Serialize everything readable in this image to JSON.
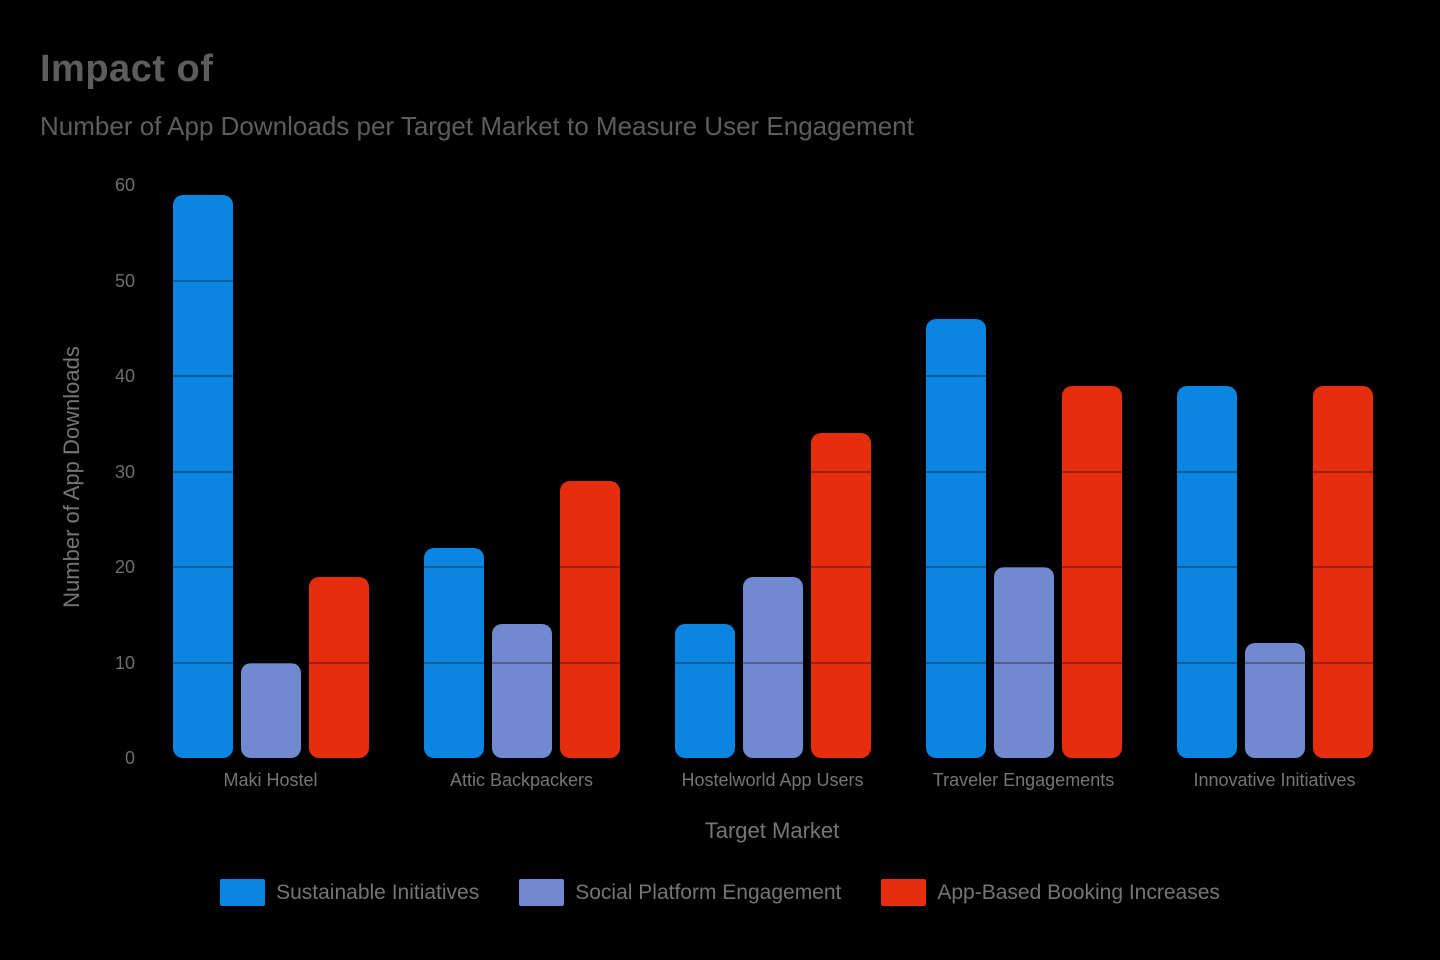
{
  "title": "Impact of",
  "subtitle": "Number of App Downloads per Target Market to Measure User Engagement",
  "chart_data": {
    "type": "bar",
    "categories": [
      "Maki Hostel",
      "Attic Backpackers",
      "Hostelworld App Users",
      "Traveler Engagements",
      "Innovative Initiatives"
    ],
    "series": [
      {
        "name": "Sustainable Initiatives",
        "color": "#0a86e2",
        "values": [
          59,
          22,
          14,
          46,
          39
        ]
      },
      {
        "name": "Social Platform Engagement",
        "color": "#7189d0",
        "values": [
          10,
          14,
          19,
          20,
          12
        ]
      },
      {
        "name": "App-Based Booking Increases",
        "color": "#e62e0d",
        "values": [
          19,
          29,
          34,
          39,
          39
        ]
      }
    ],
    "xlabel": "Target Market",
    "ylabel": "Number of App Downloads",
    "ylim": [
      0,
      60
    ],
    "yticks": [
      0,
      10,
      20,
      30,
      40,
      50,
      60
    ],
    "grid": "horizontal gridlines drawn over bars",
    "legend_position": "bottom-center"
  },
  "colors": {
    "background": "#000000",
    "title_text": "#5d5d5d",
    "axis_text": "#757575",
    "tick_text": "#6e6e6e",
    "gridline_overlay": "rgba(0,0,0,0.3)"
  }
}
